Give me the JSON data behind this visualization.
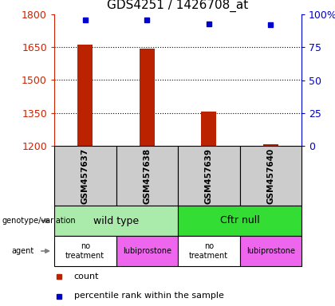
{
  "title": "GDS4251 / 1426708_at",
  "samples": [
    "GSM457637",
    "GSM457638",
    "GSM457639",
    "GSM457640"
  ],
  "counts": [
    1660,
    1642,
    1355,
    1207
  ],
  "percentiles": [
    95.5,
    95.5,
    93.0,
    92.0
  ],
  "ymin": 1200,
  "ymax": 1800,
  "yticks": [
    1200,
    1350,
    1500,
    1650,
    1800
  ],
  "ytick_labels": [
    "1200",
    "1350",
    "1500",
    "1650",
    "1800"
  ],
  "right_yticks": [
    0,
    25,
    50,
    75,
    100
  ],
  "right_ytick_labels": [
    "0",
    "25",
    "50",
    "75",
    "100%"
  ],
  "bar_color": "#BB2200",
  "dot_color": "#0000CC",
  "gridline_yticks": [
    1350,
    1500,
    1650
  ],
  "annotation_rows": [
    {
      "label": "genotype/variation",
      "groups": [
        {
          "text": "wild type",
          "color": "#AAEAAA",
          "span": [
            0,
            2
          ]
        },
        {
          "text": "Cftr null",
          "color": "#33DD33",
          "span": [
            2,
            4
          ]
        }
      ]
    },
    {
      "label": "agent",
      "groups": [
        {
          "text": "no\ntreatment",
          "color": "#FFFFFF",
          "span": [
            0,
            1
          ]
        },
        {
          "text": "lubiprostone",
          "color": "#EE66EE",
          "span": [
            1,
            2
          ]
        },
        {
          "text": "no\ntreatment",
          "color": "#FFFFFF",
          "span": [
            2,
            3
          ]
        },
        {
          "text": "lubiprostone",
          "color": "#EE66EE",
          "span": [
            3,
            4
          ]
        }
      ]
    }
  ],
  "legend_items": [
    {
      "color": "#BB2200",
      "label": "count"
    },
    {
      "color": "#0000CC",
      "label": "percentile rank within the sample"
    }
  ],
  "left_axis_color": "#CC2200",
  "right_axis_color": "#0000CC",
  "sample_box_color": "#CCCCCC",
  "bar_width": 0.25
}
